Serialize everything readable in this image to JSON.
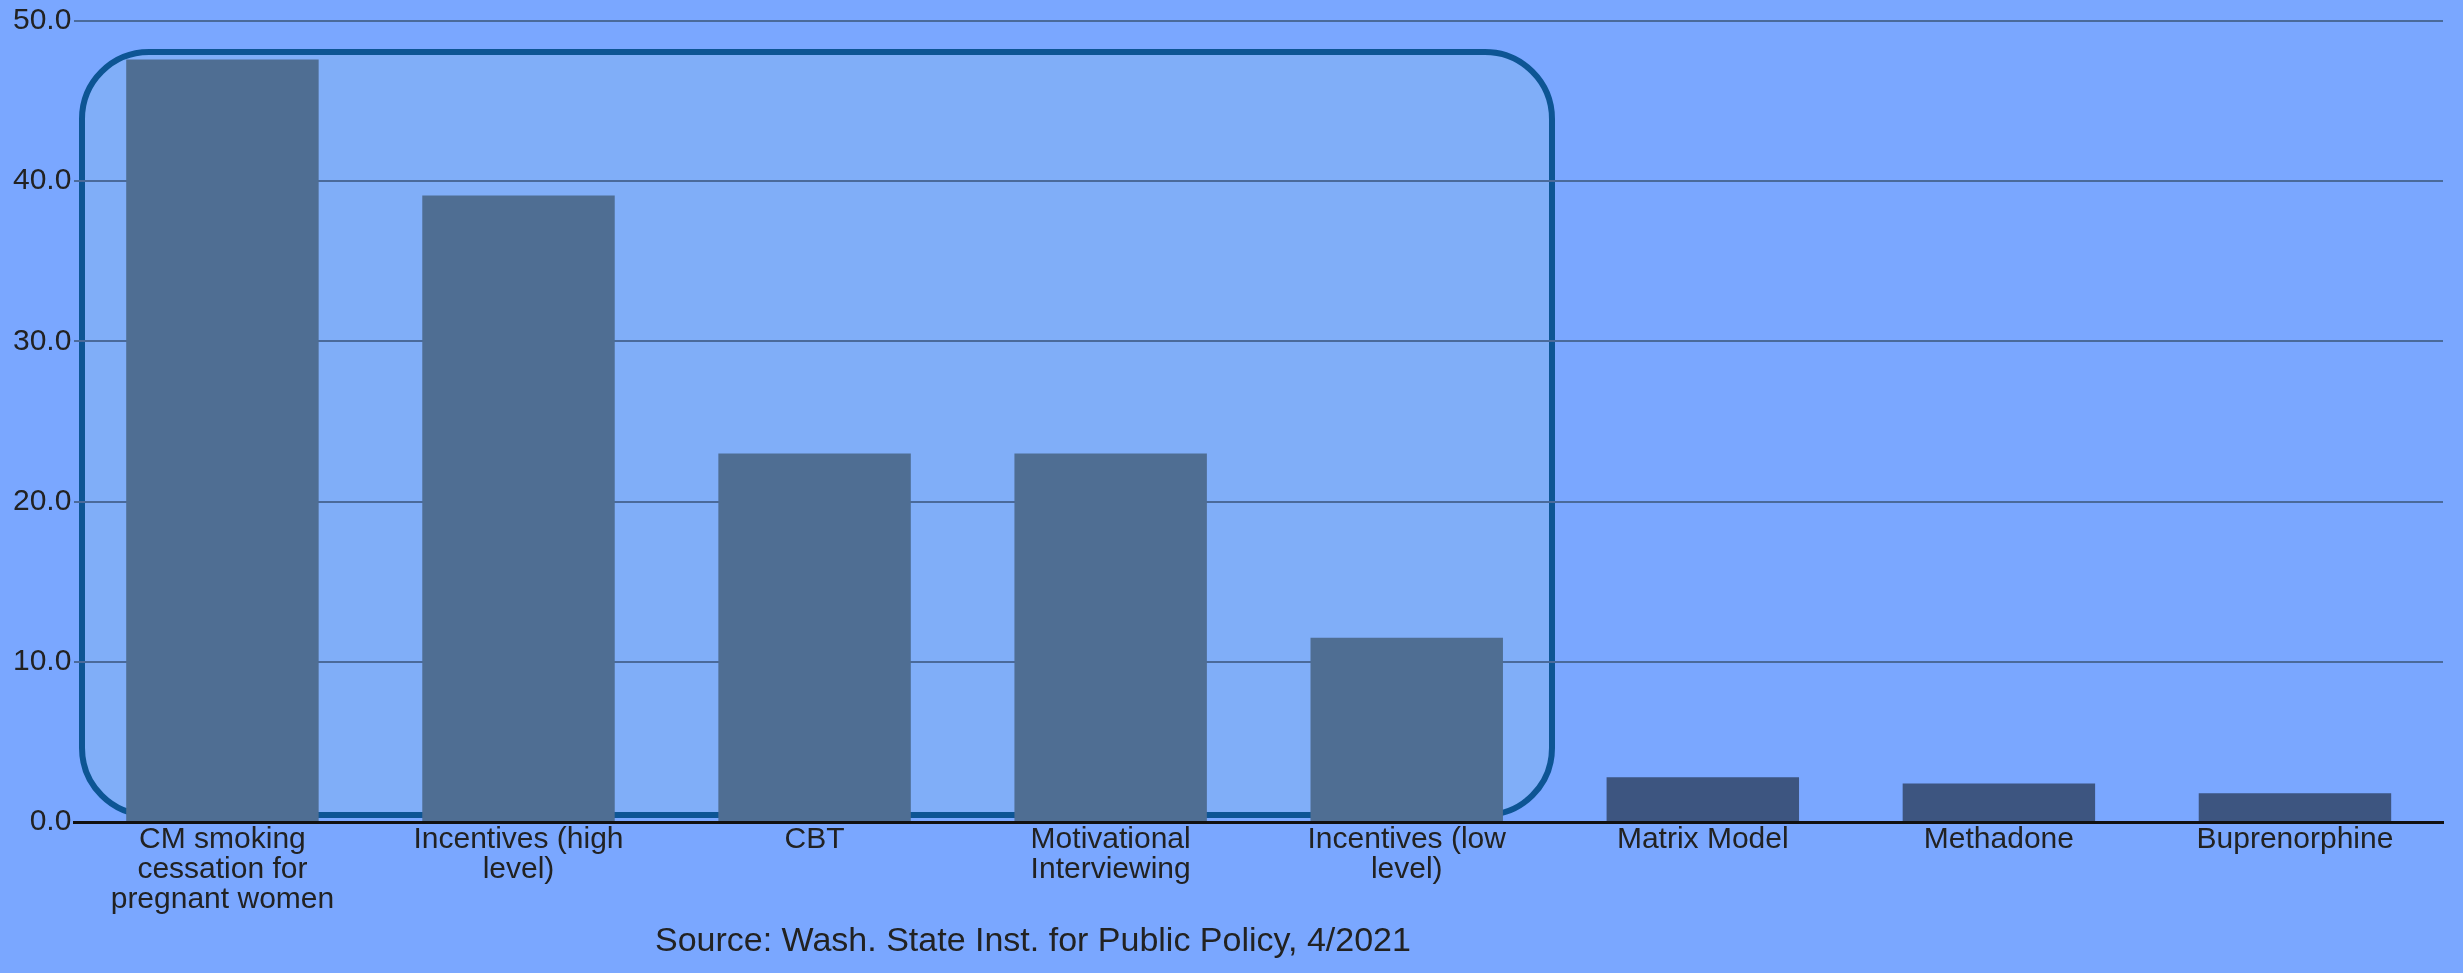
{
  "chart_data": {
    "type": "bar",
    "categories": [
      "CM smoking cessation for pregnant women",
      "Incentives (high level)",
      "CBT",
      "Motivational Interviewing",
      "Incentives (low level)",
      "Matrix Model",
      "Methadone",
      "Buprenorphine"
    ],
    "values": [
      47.6,
      39.1,
      23.0,
      23.0,
      11.5,
      2.8,
      2.4,
      1.8
    ],
    "colors": [
      "#4f6e93",
      "#4f6e93",
      "#4f6e93",
      "#4f6e93",
      "#4f6e93",
      "#3d5580",
      "#3d5580",
      "#3d5580"
    ],
    "ylim": [
      0,
      50
    ],
    "yticks": [
      {
        "value": 0,
        "label": "0.0"
      },
      {
        "value": 10,
        "label": "10.0"
      },
      {
        "value": 20,
        "label": "20.0"
      },
      {
        "value": 30,
        "label": "30.0"
      },
      {
        "value": 40,
        "label": "40.0"
      },
      {
        "value": 50,
        "label": "50.0"
      }
    ],
    "grid": "y",
    "legend": false,
    "annotations": [
      "Source: Wash. State Inst. for Public Policy, 4/2021"
    ]
  }
}
